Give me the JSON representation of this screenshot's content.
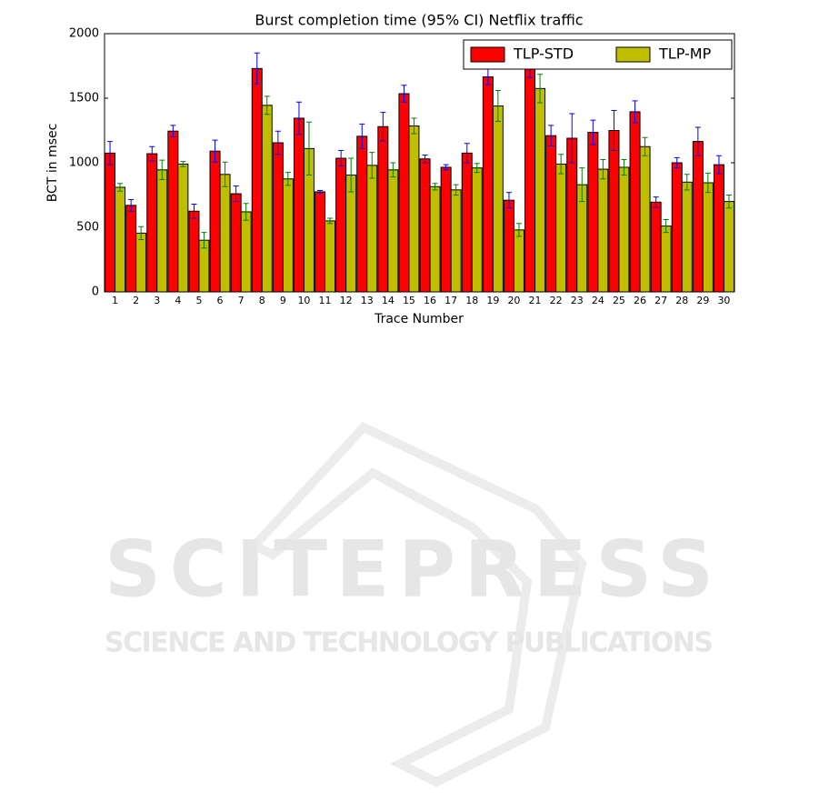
{
  "chart_data": {
    "type": "bar",
    "title": "Burst completion time (95% CI) Netflix traffic",
    "x_label": "Trace Number",
    "y_label": "BCT in msec",
    "categories": [
      "1",
      "2",
      "3",
      "4",
      "5",
      "6",
      "7",
      "8",
      "9",
      "10",
      "11",
      "12",
      "13",
      "14",
      "15",
      "16",
      "17",
      "18",
      "19",
      "20",
      "21",
      "22",
      "23",
      "24",
      "25",
      "26",
      "27",
      "28",
      "29",
      "30"
    ],
    "series": [
      {
        "name": "TLP-STD",
        "color": "#ff0000",
        "error_color": "#0000ff",
        "values": [
          1075,
          670,
          1070,
          1245,
          625,
          1090,
          760,
          1730,
          1155,
          1345,
          775,
          1035,
          1205,
          1280,
          1535,
          1030,
          965,
          1075,
          1665,
          710,
          1730,
          1210,
          1190,
          1235,
          1250,
          1395,
          695,
          1000,
          1165,
          985
        ],
        "errors": [
          90,
          45,
          55,
          45,
          55,
          85,
          60,
          120,
          90,
          125,
          10,
          60,
          95,
          110,
          65,
          30,
          20,
          75,
          60,
          60,
          70,
          80,
          190,
          95,
          155,
          85,
          40,
          40,
          110,
          70
        ]
      },
      {
        "name": "TLP-MP",
        "color": "#bfbf00",
        "error_color": "#008000",
        "values": [
          810,
          455,
          945,
          990,
          400,
          910,
          620,
          1445,
          875,
          1110,
          550,
          905,
          980,
          945,
          1285,
          815,
          790,
          960,
          1440,
          480,
          1575,
          990,
          830,
          950,
          965,
          1125,
          510,
          850,
          845,
          700
        ],
        "errors": [
          30,
          50,
          75,
          20,
          60,
          95,
          65,
          70,
          50,
          205,
          20,
          130,
          100,
          55,
          60,
          25,
          40,
          35,
          120,
          50,
          110,
          75,
          130,
          75,
          60,
          70,
          50,
          60,
          75,
          50
        ]
      }
    ],
    "ylim": [
      0,
      2000
    ],
    "yticks": [
      0,
      500,
      1000,
      1500,
      2000
    ],
    "legend": "upper right"
  },
  "watermark": {
    "title": "SCITEPRESS",
    "subtitle": "SCIENCE AND TECHNOLOGY PUBLICATIONS"
  }
}
